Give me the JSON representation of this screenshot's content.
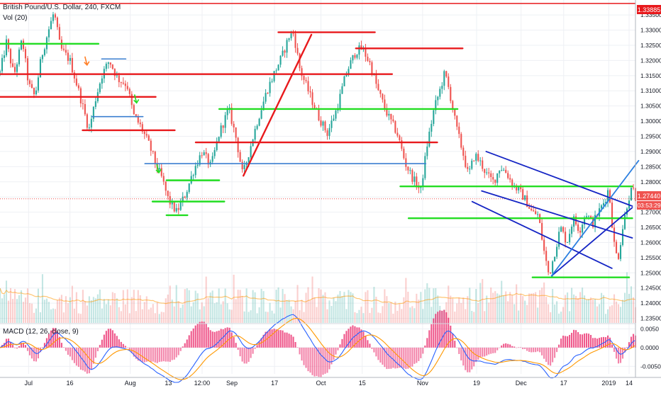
{
  "header": {
    "symbol_title": "British Pound/U.S. Dollar, 240, FXCM",
    "volume_label": "Vol (20)",
    "macd_label": "MACD (12, 26, close, 9)"
  },
  "price_badges": {
    "top_level": "1.33885",
    "current_price": "1.27440",
    "countdown": "03:53:29"
  },
  "colors": {
    "up": "#26a69a",
    "down": "#ef5350",
    "resistance": "#e8191c",
    "support": "#22dd22",
    "trendline_blue": "#1424c4",
    "level_blue": "#3b7fd0",
    "channel_light": "#2b7fe0",
    "macd_line": "#2962ff",
    "signal_line": "#ff9800",
    "hist": "#e91e63"
  },
  "chart_data": {
    "type": "candlestick",
    "symbol": "British Pound/U.S. Dollar",
    "interval": "240",
    "price_axis": {
      "ylim": [
        1.2335,
        1.339
      ],
      "ticks": [
        "1.33500",
        "1.33000",
        "1.32500",
        "1.32000",
        "1.31500",
        "1.31000",
        "1.30500",
        "1.30000",
        "1.29500",
        "1.29000",
        "1.28500",
        "1.28000",
        "1.27500",
        "1.27000",
        "1.26500",
        "1.26000",
        "1.25500",
        "1.25000",
        "1.24500",
        "1.24000",
        "1.23500"
      ]
    },
    "time_axis": {
      "labels": [
        "Jul",
        "16",
        "Aug",
        "13",
        "12:00",
        "Sep",
        "17",
        "Oct",
        "15",
        "Nov",
        "19",
        "Dec",
        "17",
        "2019",
        "14"
      ],
      "label_positions": [
        0.045,
        0.11,
        0.205,
        0.265,
        0.318,
        0.365,
        0.432,
        0.505,
        0.57,
        0.665,
        0.75,
        0.82,
        0.887,
        0.958,
        0.99
      ]
    },
    "price_path": [
      [
        0.0,
        1.316
      ],
      [
        0.01,
        1.326
      ],
      [
        0.022,
        1.315
      ],
      [
        0.035,
        1.327
      ],
      [
        0.045,
        1.312
      ],
      [
        0.055,
        1.308
      ],
      [
        0.065,
        1.321
      ],
      [
        0.075,
        1.329
      ],
      [
        0.085,
        1.336
      ],
      [
        0.095,
        1.324
      ],
      [
        0.11,
        1.32
      ],
      [
        0.125,
        1.309
      ],
      [
        0.14,
        1.297
      ],
      [
        0.15,
        1.307
      ],
      [
        0.16,
        1.315
      ],
      [
        0.172,
        1.32
      ],
      [
        0.185,
        1.314
      ],
      [
        0.2,
        1.312
      ],
      [
        0.21,
        1.302
      ],
      [
        0.222,
        1.298
      ],
      [
        0.235,
        1.292
      ],
      [
        0.245,
        1.286
      ],
      [
        0.255,
        1.281
      ],
      [
        0.265,
        1.274
      ],
      [
        0.278,
        1.27
      ],
      [
        0.292,
        1.276
      ],
      [
        0.305,
        1.284
      ],
      [
        0.318,
        1.29
      ],
      [
        0.332,
        1.285
      ],
      [
        0.345,
        1.296
      ],
      [
        0.36,
        1.304
      ],
      [
        0.372,
        1.294
      ],
      [
        0.382,
        1.282
      ],
      [
        0.392,
        1.29
      ],
      [
        0.405,
        1.3
      ],
      [
        0.42,
        1.31
      ],
      [
        0.432,
        1.316
      ],
      [
        0.445,
        1.322
      ],
      [
        0.455,
        1.328
      ],
      [
        0.462,
        1.329
      ],
      [
        0.472,
        1.317
      ],
      [
        0.485,
        1.31
      ],
      [
        0.5,
        1.302
      ],
      [
        0.515,
        1.296
      ],
      [
        0.53,
        1.304
      ],
      [
        0.545,
        1.316
      ],
      [
        0.56,
        1.323
      ],
      [
        0.57,
        1.324
      ],
      [
        0.582,
        1.319
      ],
      [
        0.595,
        1.31
      ],
      [
        0.61,
        1.302
      ],
      [
        0.625,
        1.296
      ],
      [
        0.638,
        1.286
      ],
      [
        0.65,
        1.281
      ],
      [
        0.662,
        1.277
      ],
      [
        0.672,
        1.292
      ],
      [
        0.683,
        1.304
      ],
      [
        0.692,
        1.31
      ],
      [
        0.7,
        1.316
      ],
      [
        0.708,
        1.309
      ],
      [
        0.718,
        1.298
      ],
      [
        0.728,
        1.29
      ],
      [
        0.737,
        1.282
      ],
      [
        0.747,
        1.289
      ],
      [
        0.757,
        1.286
      ],
      [
        0.767,
        1.282
      ],
      [
        0.777,
        1.28
      ],
      [
        0.787,
        1.285
      ],
      [
        0.797,
        1.283
      ],
      [
        0.807,
        1.279
      ],
      [
        0.817,
        1.277
      ],
      [
        0.827,
        1.274
      ],
      [
        0.837,
        1.27
      ],
      [
        0.847,
        1.269
      ],
      [
        0.857,
        1.256
      ],
      [
        0.864,
        1.249
      ],
      [
        0.872,
        1.256
      ],
      [
        0.882,
        1.265
      ],
      [
        0.892,
        1.26
      ],
      [
        0.902,
        1.268
      ],
      [
        0.912,
        1.264
      ],
      [
        0.922,
        1.27
      ],
      [
        0.932,
        1.266
      ],
      [
        0.942,
        1.27
      ],
      [
        0.952,
        1.274
      ],
      [
        0.958,
        1.278
      ],
      [
        0.966,
        1.26
      ],
      [
        0.972,
        1.254
      ],
      [
        0.98,
        1.265
      ],
      [
        0.988,
        1.274
      ],
      [
        0.995,
        1.278
      ],
      [
        1.0,
        1.2744
      ]
    ],
    "annotations": {
      "top_resistance": {
        "price": 1.3388,
        "color": "resistance"
      },
      "current_price_line": {
        "price": 1.2744
      },
      "horizontal_levels": [
        {
          "type": "support",
          "from": 0.0,
          "to": 0.155,
          "price": 1.3255
        },
        {
          "type": "resistance",
          "from": 0.0,
          "to": 0.617,
          "price": 1.3155
        },
        {
          "type": "resistance",
          "from": 0.0,
          "to": 0.245,
          "price": 1.308
        },
        {
          "type": "level_blue",
          "from": 0.16,
          "to": 0.198,
          "price": 1.3205
        },
        {
          "type": "level_blue",
          "from": 0.145,
          "to": 0.225,
          "price": 1.3015
        },
        {
          "type": "resistance",
          "from": 0.13,
          "to": 0.275,
          "price": 1.297
        },
        {
          "type": "level_blue",
          "from": 0.228,
          "to": 0.67,
          "price": 1.286
        },
        {
          "type": "resistance",
          "from": 0.308,
          "to": 0.688,
          "price": 1.293
        },
        {
          "type": "support",
          "from": 0.345,
          "to": 0.72,
          "price": 1.304
        },
        {
          "type": "support",
          "from": 0.262,
          "to": 0.345,
          "price": 1.2805
        },
        {
          "type": "support",
          "from": 0.24,
          "to": 0.353,
          "price": 1.2735
        },
        {
          "type": "support",
          "from": 0.262,
          "to": 0.295,
          "price": 1.269
        },
        {
          "type": "resistance",
          "from": 0.438,
          "to": 0.59,
          "price": 1.3293
        },
        {
          "type": "resistance",
          "from": 0.56,
          "to": 0.728,
          "price": 1.324
        },
        {
          "type": "support",
          "from": 0.63,
          "to": 0.995,
          "price": 1.2785
        },
        {
          "type": "support",
          "from": 0.643,
          "to": 0.995,
          "price": 1.268
        },
        {
          "type": "support",
          "from": 0.838,
          "to": 0.99,
          "price": 1.2485
        }
      ],
      "trendlines": [
        {
          "type": "resistance",
          "from": [
            0.383,
            1.282
          ],
          "to": [
            0.49,
            1.3285
          ]
        },
        {
          "type": "trendline_blue",
          "from": [
            0.765,
            1.29
          ],
          "to": [
            0.995,
            1.272
          ]
        },
        {
          "type": "trendline_blue",
          "from": [
            0.758,
            1.277
          ],
          "to": [
            0.995,
            1.2615
          ]
        },
        {
          "type": "trendline_blue",
          "from": [
            0.743,
            1.2735
          ],
          "to": [
            0.963,
            1.2515
          ]
        },
        {
          "type": "trendline_blue",
          "from": [
            0.868,
            1.249
          ],
          "to": [
            0.995,
            1.2715
          ]
        },
        {
          "type": "channel_light",
          "from": [
            0.868,
            1.249
          ],
          "to": [
            1.005,
            1.287
          ]
        }
      ],
      "arrows": [
        {
          "color": "#ff7f27",
          "at": [
            0.137,
            1.3185
          ]
        },
        {
          "color": "#22dd22",
          "at": [
            0.215,
            1.306
          ]
        },
        {
          "color": "#22dd22",
          "at": [
            0.25,
            1.283
          ]
        }
      ]
    },
    "macd": {
      "label": "MACD (12, 26, close, 9)",
      "ylim": [
        -0.007,
        0.0062
      ],
      "ticks": [
        "0.0050",
        "0.0000",
        "-0.0050"
      ]
    }
  }
}
